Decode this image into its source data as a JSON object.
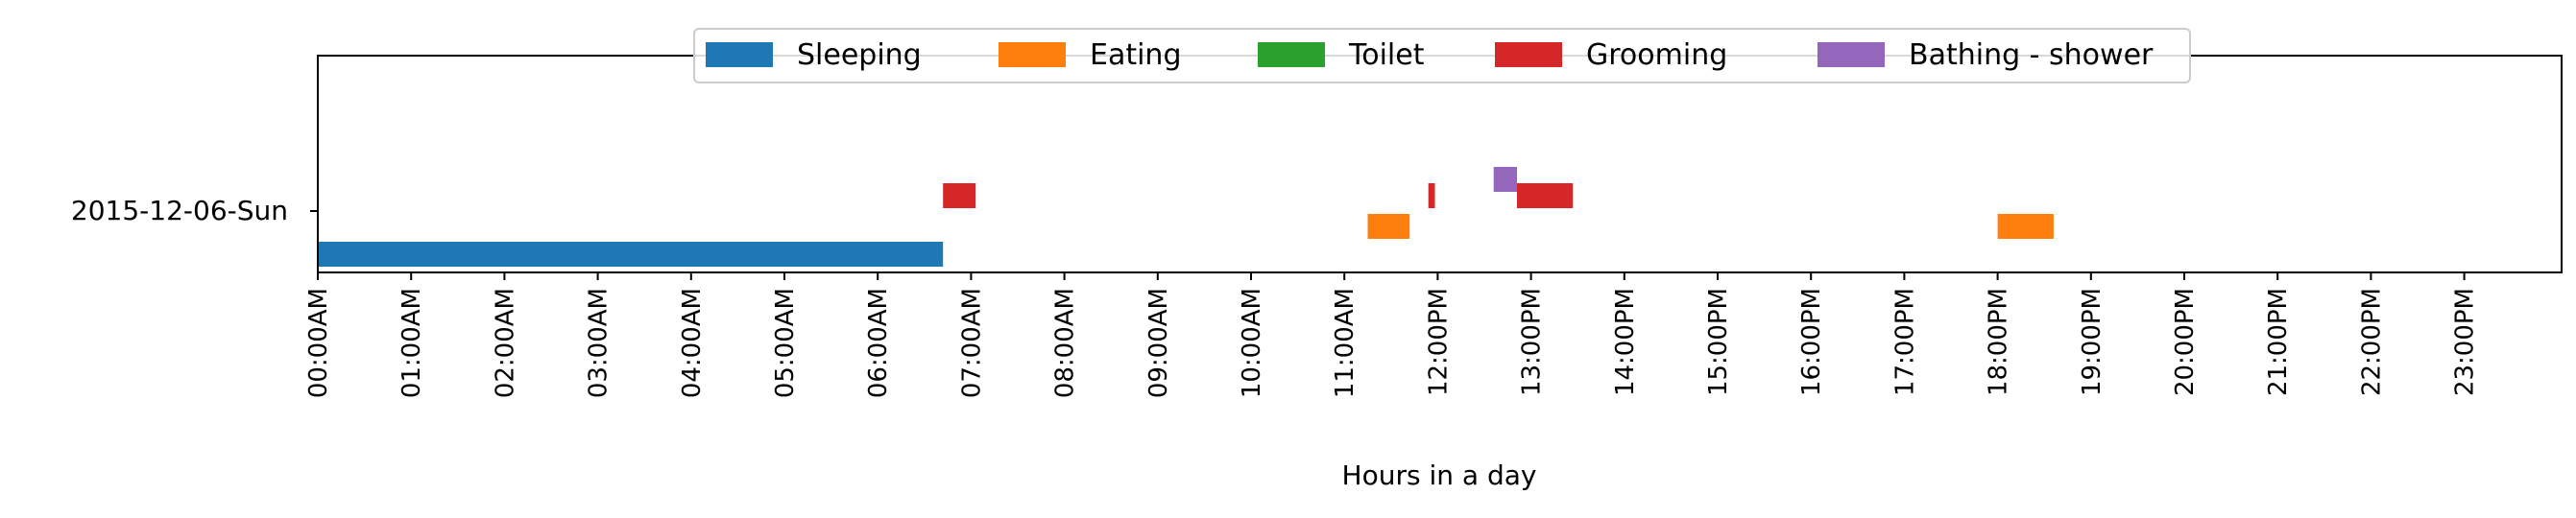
{
  "chart_data": {
    "type": "timeline",
    "title": "",
    "xlabel": "Hours in a day",
    "ylabel": "",
    "xlim": [
      0,
      24
    ],
    "row_label": "2015-12-06-Sun",
    "x_tick_labels": [
      "00:00AM",
      "01:00AM",
      "02:00AM",
      "03:00AM",
      "04:00AM",
      "05:00AM",
      "06:00AM",
      "07:00AM",
      "08:00AM",
      "09:00AM",
      "10:00AM",
      "11:00AM",
      "12:00PM",
      "13:00PM",
      "14:00PM",
      "15:00PM",
      "16:00PM",
      "17:00PM",
      "18:00PM",
      "19:00PM",
      "20:00PM",
      "21:00PM",
      "22:00PM",
      "23:00PM"
    ],
    "legend_position": "top-center",
    "series": [
      {
        "name": "Sleeping",
        "color": "#1f77b4",
        "intervals": [
          [
            0.0,
            6.7
          ]
        ]
      },
      {
        "name": "Eating",
        "color": "#ff7f0e",
        "intervals": [
          [
            11.25,
            11.7
          ],
          [
            18.0,
            18.6
          ]
        ]
      },
      {
        "name": "Toilet",
        "color": "#2ca02c",
        "intervals": []
      },
      {
        "name": "Grooming",
        "color": "#d62728",
        "intervals": [
          [
            6.7,
            7.05
          ],
          [
            11.9,
            11.97
          ],
          [
            12.85,
            13.45
          ]
        ]
      },
      {
        "name": "Bathing - shower",
        "color": "#9467bd",
        "intervals": [
          [
            12.6,
            12.85
          ]
        ]
      }
    ]
  }
}
